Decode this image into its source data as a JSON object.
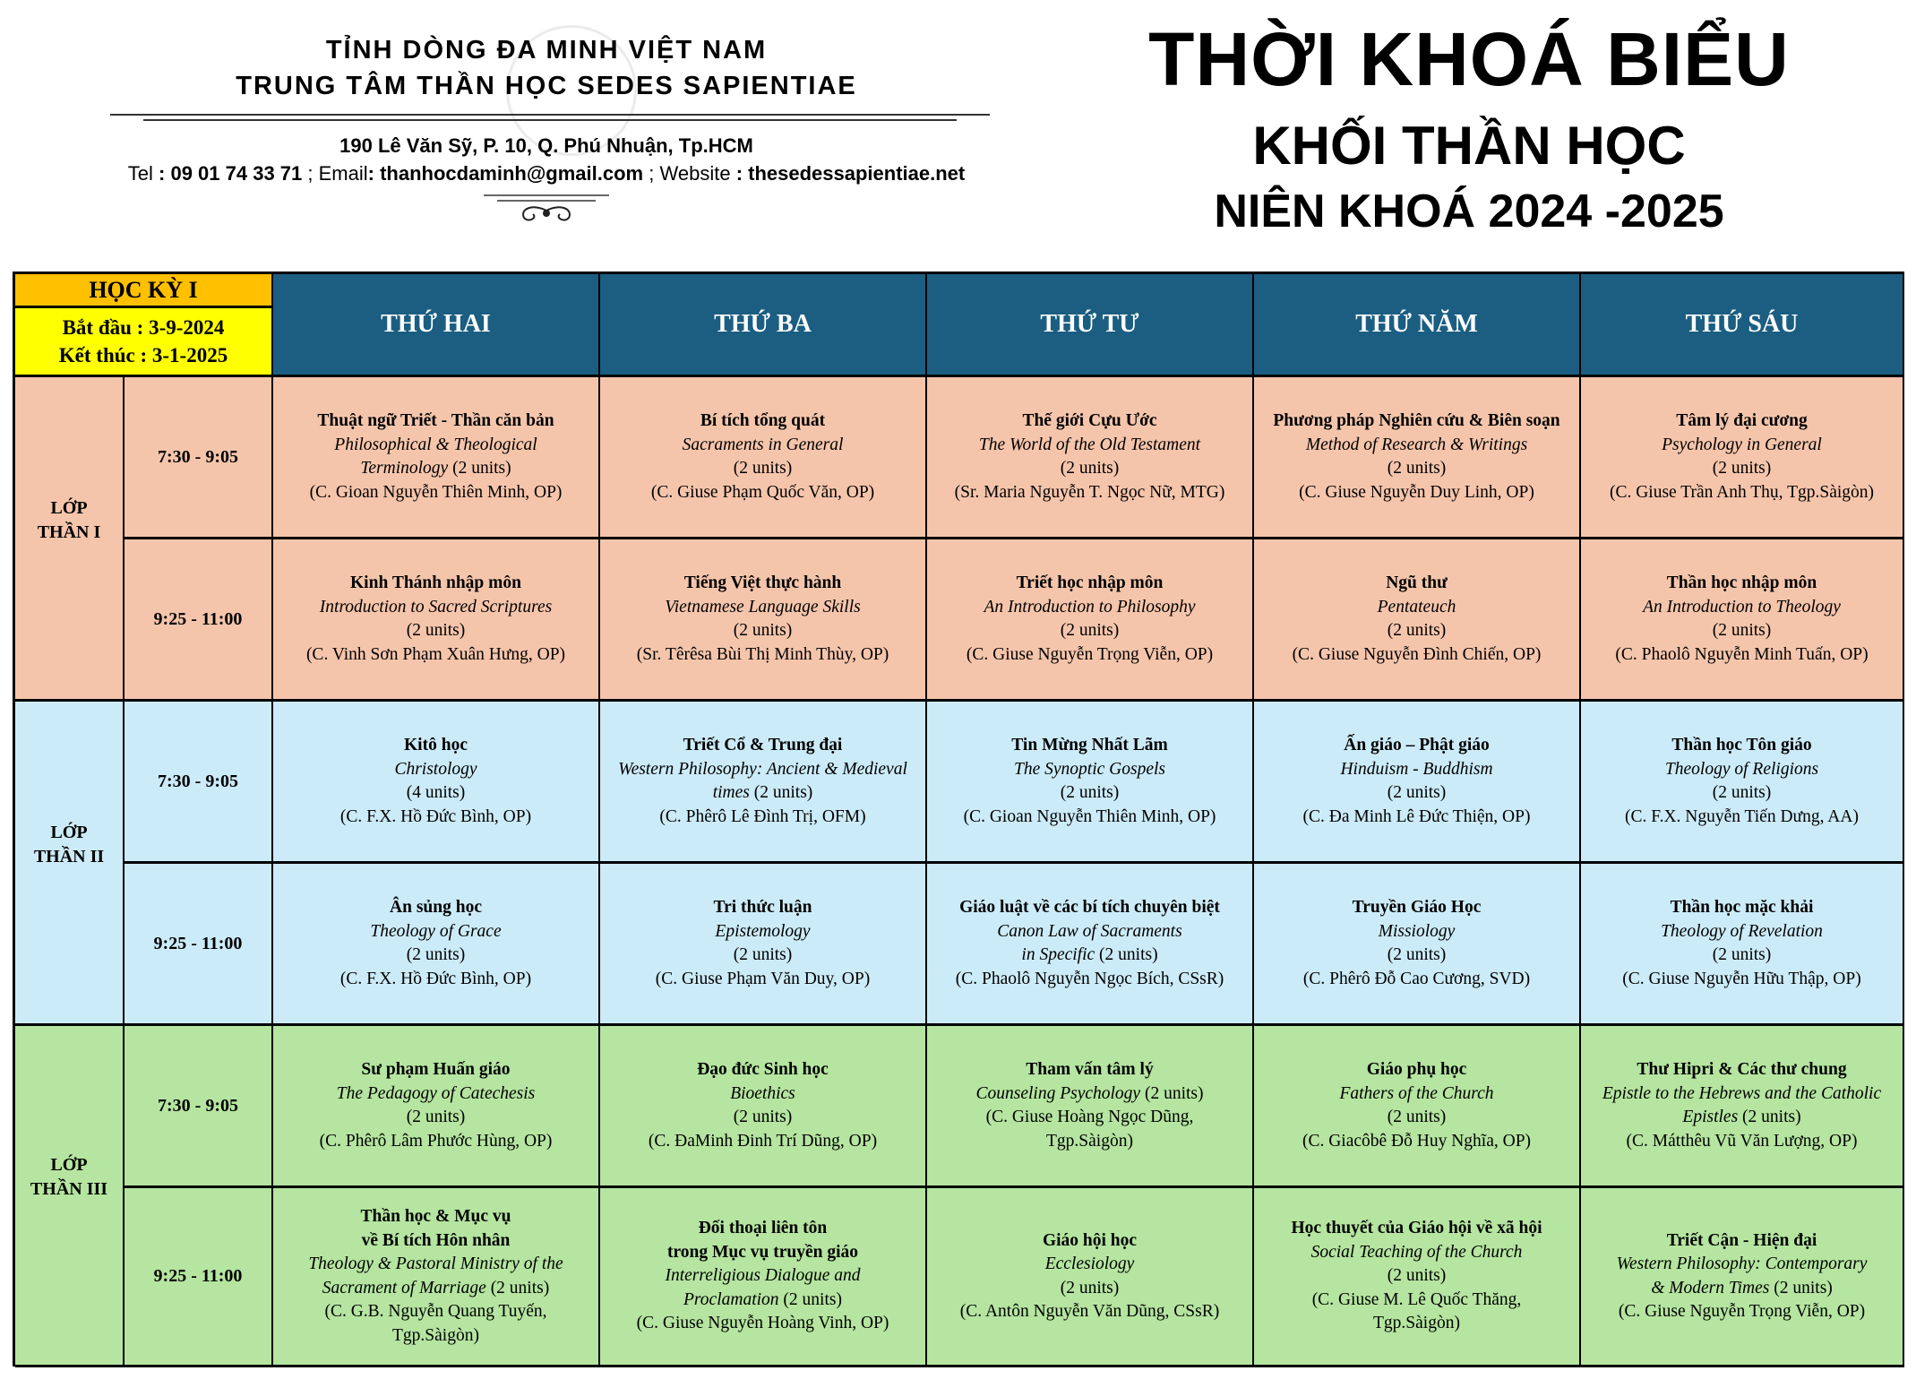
{
  "letterhead": {
    "province": "TỈNH DÒNG ĐA MINH VIỆT NAM",
    "center": "TRUNG TÂM THẦN HỌC SEDES SAPIENTIAE",
    "address": "190 Lê Văn Sỹ, P. 10, Q. Phú Nhuận, Tp.HCM",
    "tel_label": "Tel",
    "tel": ": 09 01 74 33 71",
    "email_label": "; Email",
    "email": ": thanhocdaminh@gmail.com",
    "website_label": "; Website",
    "website": ": thesedessapientiae.net"
  },
  "title": {
    "main": "THỜI KHOÁ BIỂU",
    "sub": "KHỐI THẦN HỌC",
    "year": "NIÊN KHOÁ 2024 -2025"
  },
  "semester": {
    "label": "HỌC KỲ I",
    "start": "Bắt đầu : 3-9-2024",
    "end": "Kết thúc : 3-1-2025"
  },
  "days": [
    "THỨ HAI",
    "THỨ BA",
    "THỨ TƯ",
    "THỨ NĂM",
    "THỨ SÁU"
  ],
  "colors": {
    "header": "#1B5E82",
    "semester": "#FFC000",
    "dates": "#FFFF00",
    "than1": "#F5C5AB",
    "than2": "#CCEBF8",
    "than3": "#B5E5A0"
  },
  "groups": [
    {
      "name": [
        "LỚP",
        "THẦN I"
      ],
      "color": "#F5C5AB",
      "slots": [
        {
          "time": "7:30 - 9:05",
          "cells": [
            [
              {
                "b": "Thuật ngữ Triết - Thần căn bản"
              },
              {
                "i": "Philosophical & Theological"
              },
              {
                "i": "Terminology",
                "n": " (2 units)"
              },
              {
                "n": "(C. Gioan Nguyễn Thiên Minh, OP)"
              }
            ],
            [
              {
                "b": "Bí tích tổng quát"
              },
              {
                "i": "Sacraments in General"
              },
              {
                "n": "(2 units)"
              },
              {
                "n": "(C. Giuse Phạm Quốc Văn, OP)"
              }
            ],
            [
              {
                "b": "Thế giới Cựu Ước"
              },
              {
                "i": "The World of the Old Testament"
              },
              {
                "n": "(2 units)"
              },
              {
                "n": "(Sr. Maria Nguyễn T. Ngọc Nữ, MTG)"
              }
            ],
            [
              {
                "b": "Phương pháp Nghiên cứu & Biên soạn"
              },
              {
                "i": "Method of Research & Writings"
              },
              {
                "n": "(2 units)"
              },
              {
                "n": "(C.  Giuse Nguyễn Duy Linh, OP)"
              }
            ],
            [
              {
                "b": "Tâm lý đại cương"
              },
              {
                "i": "Psychology in General"
              },
              {
                "n": "(2 units)"
              },
              {
                "n": "(C. Giuse Trần Anh Thụ, Tgp.Sàigòn)"
              }
            ]
          ]
        },
        {
          "time": "9:25 - 11:00",
          "cells": [
            [
              {
                "b": "Kinh Thánh nhập môn"
              },
              {
                "i": "Introduction to Sacred Scriptures"
              },
              {
                "n": "(2 units)"
              },
              {
                "n": "(C. Vinh Sơn Phạm Xuân Hưng, OP)"
              }
            ],
            [
              {
                "b": "Tiếng Việt thực hành"
              },
              {
                "i": "Vietnamese Language Skills"
              },
              {
                "n": "(2 units)"
              },
              {
                "n": "(Sr. Têrêsa Bùi Thị Minh Thùy, OP)"
              }
            ],
            [
              {
                "b": "Triết học nhập môn"
              },
              {
                "i": "An Introduction to Philosophy"
              },
              {
                "n": "(2 units)"
              },
              {
                "n": "(C. Giuse Nguyễn Trọng Viễn, OP)"
              }
            ],
            [
              {
                "b": "Ngũ thư"
              },
              {
                "i": "Pentateuch"
              },
              {
                "n": "(2 units)"
              },
              {
                "n": "(C. Giuse Nguyễn Đình Chiến, OP)"
              }
            ],
            [
              {
                "b": "Thần học nhập môn"
              },
              {
                "i": "An Introduction to Theology"
              },
              {
                "n": "(2 units)"
              },
              {
                "n": "(C. Phaolô Nguyễn Minh Tuấn, OP)"
              }
            ]
          ]
        }
      ]
    },
    {
      "name": [
        "LỚP",
        "THẦN II"
      ],
      "color": "#CCEBF8",
      "slots": [
        {
          "time": "7:30 - 9:05",
          "cells": [
            [
              {
                "b": "Kitô học"
              },
              {
                "i": "Christology"
              },
              {
                "n": "(4 units)"
              },
              {
                "n": "(C. F.X. Hồ Đức Bình, OP)"
              }
            ],
            [
              {
                "b": "Triết Cổ & Trung đại"
              },
              {
                "i": "Western Philosophy: Ancient & Medieval"
              },
              {
                "i": "times",
                "n": " (2 units)"
              },
              {
                "n": "(C. Phêrô Lê Đình Trị, OFM)"
              }
            ],
            [
              {
                "b": "Tin Mừng Nhất Lãm"
              },
              {
                "i": "The Synoptic Gospels"
              },
              {
                "n": "(2 units)"
              },
              {
                "n": "(C. Gioan Nguyễn Thiên Minh, OP)"
              }
            ],
            [
              {
                "b": "Ấn giáo – Phật giáo"
              },
              {
                "i": "Hinduism - Buddhism"
              },
              {
                "n": "(2 units)"
              },
              {
                "n": "(C. Đa Minh Lê Đức Thiện, OP)"
              }
            ],
            [
              {
                "b": "Thần học Tôn giáo"
              },
              {
                "i": "Theology of Religions"
              },
              {
                "n": "(2 units)"
              },
              {
                "n": "(C. F.X. Nguyễn Tiến Dưng, AA)"
              }
            ]
          ]
        },
        {
          "time": "9:25 - 11:00",
          "cells": [
            [
              {
                "b": "Ân sủng học"
              },
              {
                "i": "Theology of Grace"
              },
              {
                "n": "(2 units)"
              },
              {
                "n": "(C. F.X. Hồ Đức Bình, OP)"
              }
            ],
            [
              {
                "b": "Tri thức luận"
              },
              {
                "i": "Epistemology"
              },
              {
                "n": "(2 units)"
              },
              {
                "n": "(C. Giuse Phạm Văn Duy, OP)"
              }
            ],
            [
              {
                "b": "Giáo luật về các bí tích chuyên biệt"
              },
              {
                "i": "Canon Law of Sacraments"
              },
              {
                "i": "in Specific",
                "n": " (2 units)"
              },
              {
                "n": "(C. Phaolô Nguyễn Ngọc Bích, CSsR)"
              }
            ],
            [
              {
                "b": "Truyền Giáo Học"
              },
              {
                "i": "Missiology"
              },
              {
                "n": "(2 units)"
              },
              {
                "n": "(C. Phêrô Đỗ Cao Cương, SVD)"
              }
            ],
            [
              {
                "b": "Thần học mặc khải"
              },
              {
                "i": "Theology of Revelation"
              },
              {
                "n": "(2 units)"
              },
              {
                "n": "(C. Giuse Nguyễn Hữu Thập, OP)"
              }
            ]
          ]
        }
      ]
    },
    {
      "name": [
        "LỚP",
        "THẦN III"
      ],
      "color": "#B5E5A0",
      "slots": [
        {
          "time": "7:30 - 9:05",
          "cells": [
            [
              {
                "b": "Sư phạm Huấn giáo"
              },
              {
                "i": "The Pedagogy of Catechesis"
              },
              {
                "n": "(2 units)"
              },
              {
                "n": "(C. Phêrô Lâm Phước Hùng, OP)"
              }
            ],
            [
              {
                "b": "Đạo đức Sinh học"
              },
              {
                "i": "Bioethics"
              },
              {
                "n": "(2 units)"
              },
              {
                "n": "(C. ĐaMinh Đinh Trí Dũng, OP)"
              }
            ],
            [
              {
                "b": "Tham vấn tâm lý"
              },
              {
                "i": "Counseling Psychology",
                "n": " (2 units)"
              },
              {
                "n": "(C. Giuse Hoàng Ngọc Dũng,"
              },
              {
                "n": "Tgp.Sàigòn)"
              }
            ],
            [
              {
                "b": "Giáo phụ học"
              },
              {
                "i": "Fathers of the Church"
              },
              {
                "n": "(2 units)"
              },
              {
                "n": "(C. Giacôbê Đỗ Huy Nghĩa, OP)"
              }
            ],
            [
              {
                "b": "Thư Hipri & Các thư chung"
              },
              {
                "i": "Epistle to the Hebrews and the Catholic"
              },
              {
                "i": "Epistles",
                "n": " (2 units)"
              },
              {
                "n": "(C. Mátthêu Vũ Văn Lượng, OP)"
              }
            ]
          ]
        },
        {
          "time": "9:25 - 11:00",
          "cells": [
            [
              {
                "b": "Thần học & Mục vụ"
              },
              {
                "b": "về Bí tích Hôn nhân"
              },
              {
                "i": "Theology & Pastoral Ministry of the"
              },
              {
                "i": "Sacrament of Marriage",
                "n": " (2 units)"
              },
              {
                "n": "(C. G.B. Nguyễn Quang Tuyến,"
              },
              {
                "n": "Tgp.Sàigòn)"
              }
            ],
            [
              {
                "b": "Đối thoại liên tôn"
              },
              {
                "b": "trong Mục vụ truyền giáo"
              },
              {
                "i": "Interreligious Dialogue and"
              },
              {
                "i": "Proclamation",
                "n": " (2 units)"
              },
              {
                "n": "(C. Giuse Nguyễn Hoàng Vinh, OP)"
              }
            ],
            [
              {
                "b": "Giáo hội học"
              },
              {
                "i": "Ecclesiology"
              },
              {
                "n": "(2 units)"
              },
              {
                "n": "(C. Antôn Nguyễn Văn Dũng, CSsR)"
              }
            ],
            [
              {
                "b": "Học thuyết của Giáo hội về xã hội"
              },
              {
                "i": "Social Teaching of the Church"
              },
              {
                "n": "(2 units)"
              },
              {
                "n": "(C. Giuse M. Lê Quốc Thăng,"
              },
              {
                "n": "Tgp.Sàigòn)"
              }
            ],
            [
              {
                "b": "Triết Cận - Hiện đại"
              },
              {
                "i": "Western Philosophy: Contemporary"
              },
              {
                "i": "& Modern Times",
                "n": " (2 units)"
              },
              {
                "n": "(C. Giuse Nguyễn Trọng Viễn, OP)"
              }
            ]
          ]
        }
      ]
    }
  ]
}
